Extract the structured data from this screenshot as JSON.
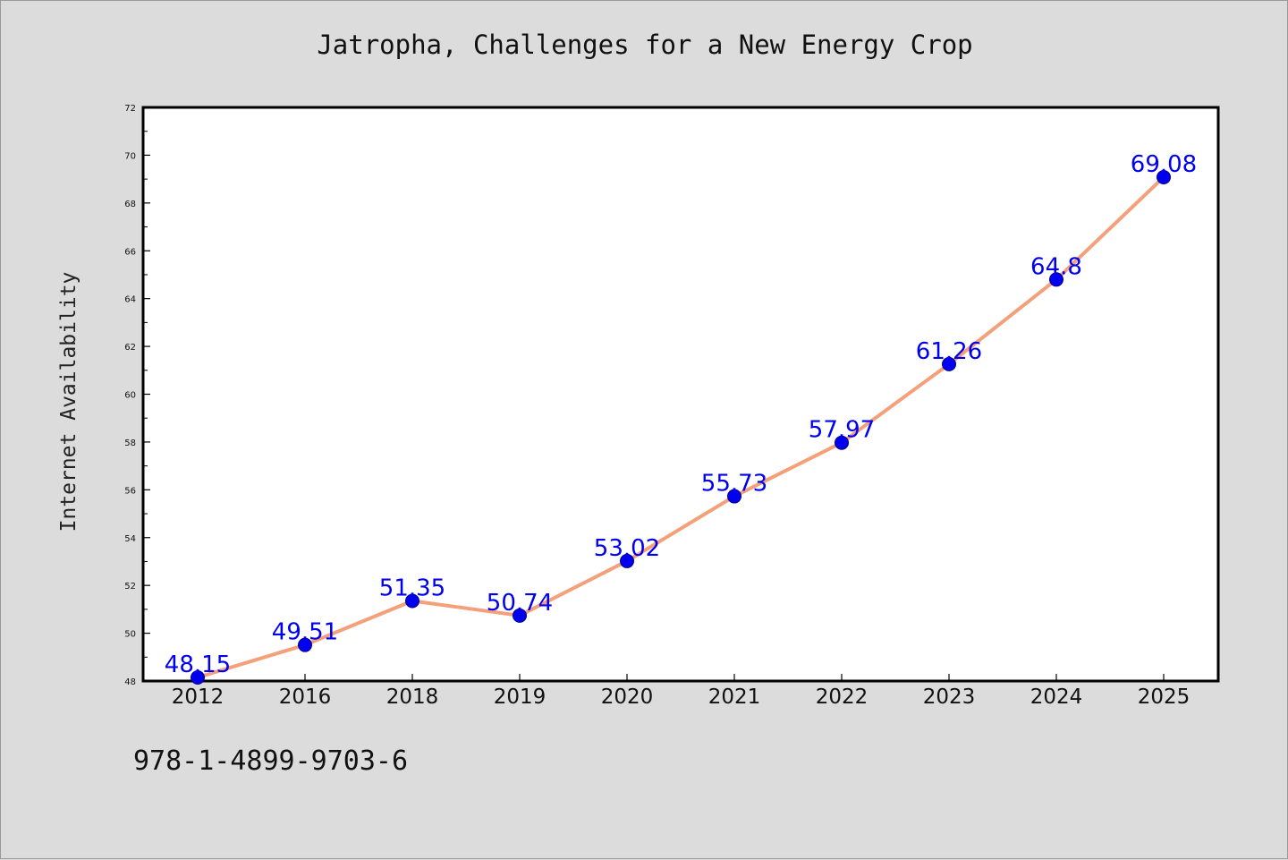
{
  "chart_data": {
    "type": "line",
    "title": "Jatropha, Challenges for a New Energy Crop",
    "xlabel": "",
    "ylabel": "Internet Availability",
    "categories": [
      "2012",
      "2016",
      "2018",
      "2019",
      "2020",
      "2021",
      "2022",
      "2023",
      "2024",
      "2025"
    ],
    "series": [
      {
        "values": [
          48.15,
          49.51,
          51.35,
          50.74,
          53.02,
          55.73,
          57.97,
          61.26,
          64.8,
          69.08
        ],
        "labels": [
          "48.15",
          "49.51",
          "51.35",
          "50.74",
          "53.02",
          "55.73",
          "57.97",
          "61.26",
          "64.8",
          "69.08"
        ],
        "line_color": "#f4a07a",
        "marker_color": "#0000ee",
        "label_color": "#0000ee"
      }
    ],
    "ylim": [
      48,
      72
    ],
    "yticks": [
      48,
      50,
      52,
      54,
      56,
      58,
      60,
      62,
      64,
      66,
      68,
      70,
      72
    ],
    "ytick_labels": [
      "48",
      "50",
      "52",
      "54",
      "56",
      "58",
      "60",
      "62",
      "64",
      "66",
      "68",
      "70",
      "72"
    ],
    "grid": false,
    "legend": "none"
  },
  "footer": {
    "isbn": "978-1-4899-9703-6"
  },
  "colors": {
    "background": "#dcdcdc",
    "plot_background": "#ffffff",
    "axes": "#000000"
  }
}
